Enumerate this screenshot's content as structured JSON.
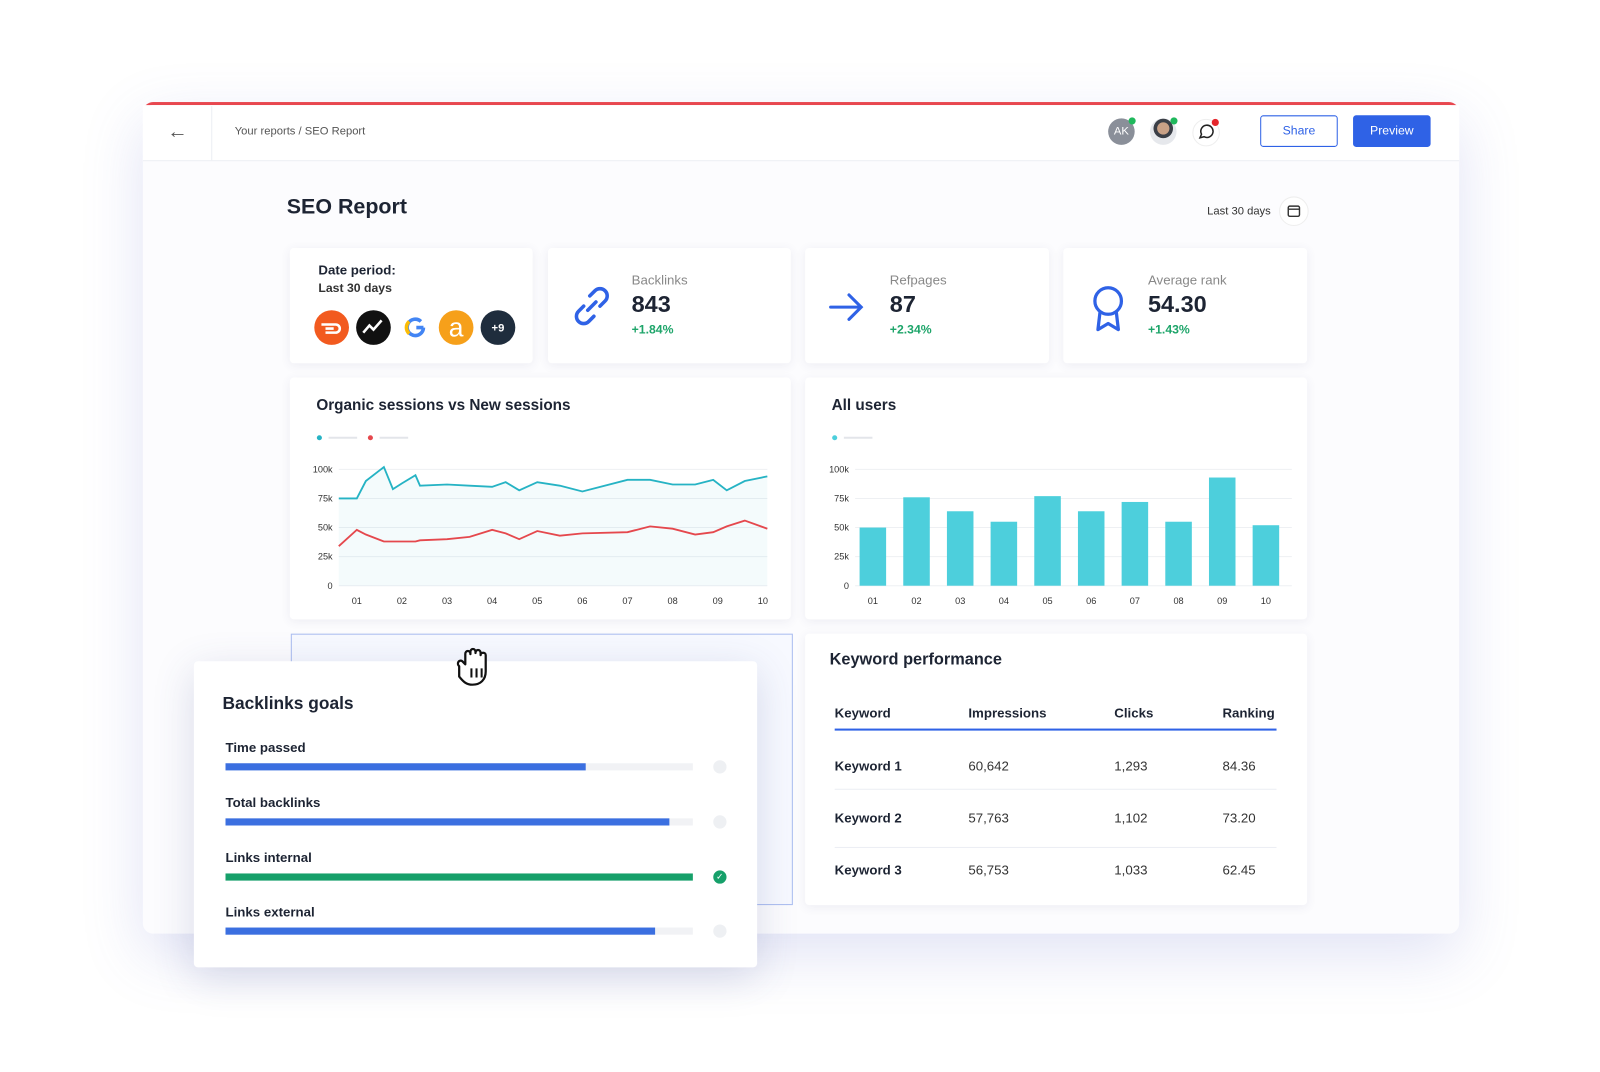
{
  "header": {
    "breadcrumb": "Your reports / SEO Report",
    "avatar_initials": "AK",
    "share_button": "Share",
    "preview_button": "Preview"
  },
  "report": {
    "title": "SEO Report",
    "date_range": "Last 30 days"
  },
  "date_card": {
    "label": "Date period:",
    "value": "Last 30 days",
    "more_sources": "+9"
  },
  "kpis": [
    {
      "label": "Backlinks",
      "value": "843",
      "change": "+1.84%"
    },
    {
      "label": "Refpages",
      "value": "87",
      "change": "+2.34%"
    },
    {
      "label": "Average rank",
      "value": "54.30",
      "change": "+1.43%"
    }
  ],
  "chart_data": [
    {
      "type": "line",
      "title": "Organic sessions vs New sessions",
      "x": [
        0.6,
        1.0,
        1.2,
        1.6,
        1.8,
        2.0,
        2.3,
        2.4,
        3.0,
        3.5,
        4.0,
        4.3,
        4.6,
        5.0,
        5.5,
        6.0,
        7.0,
        7.5,
        8.0,
        8.5,
        8.9,
        9.2,
        9.6,
        10.1
      ],
      "xlim": [
        0.6,
        10.1
      ],
      "xticks": [
        {
          "value": 1,
          "label": "01"
        },
        {
          "value": 2,
          "label": "02"
        },
        {
          "value": 3,
          "label": "03"
        },
        {
          "value": 4,
          "label": "04"
        },
        {
          "value": 5,
          "label": "05"
        },
        {
          "value": 6,
          "label": "06"
        },
        {
          "value": 7,
          "label": "07"
        },
        {
          "value": 8,
          "label": "08"
        },
        {
          "value": 9,
          "label": "09"
        },
        {
          "value": 10,
          "label": "10"
        }
      ],
      "ylim": [
        0,
        100
      ],
      "yticks": [
        0,
        {
          "value": 25,
          "label": "25k"
        },
        {
          "value": 50,
          "label": "50k"
        },
        {
          "value": 75,
          "label": "75k"
        },
        {
          "value": 100,
          "label": "100k"
        }
      ],
      "grid": true,
      "series": [
        {
          "color": "#26b3c4",
          "values": [
            75,
            75,
            90,
            102,
            83,
            88,
            95,
            86,
            87,
            86,
            85,
            89,
            82,
            89,
            86,
            81,
            91,
            91,
            87,
            87,
            91,
            82,
            90,
            94
          ]
        },
        {
          "color": "#e5484d",
          "values": [
            34,
            48,
            44,
            38,
            38,
            38,
            38,
            39,
            40,
            42,
            48,
            45,
            40,
            47,
            43,
            45,
            46,
            51,
            49,
            44,
            46,
            51,
            56,
            49
          ]
        }
      ]
    },
    {
      "type": "bar",
      "title": "All users",
      "categories": [
        "01",
        "02",
        "03",
        "04",
        "05",
        "06",
        "07",
        "08",
        "09",
        "10"
      ],
      "values": [
        50,
        76,
        64,
        55,
        77,
        64,
        72,
        55,
        93,
        52
      ],
      "color": "#4dcfdc",
      "ylim": [
        0,
        100
      ],
      "yticks": [
        0,
        {
          "value": 25,
          "label": "25k"
        },
        {
          "value": 50,
          "label": "50k"
        },
        {
          "value": 75,
          "label": "75k"
        },
        {
          "value": 100,
          "label": "100k"
        }
      ],
      "grid": true
    }
  ],
  "keyword_table": {
    "title": "Keyword performance",
    "columns": [
      "Keyword",
      "Impressions",
      "Clicks",
      "Ranking"
    ],
    "rows": [
      [
        "Keyword 1",
        "60,642",
        "1,293",
        "84.36"
      ],
      [
        "Keyword 2",
        "57,763",
        "1,102",
        "73.20"
      ],
      [
        "Keyword 3",
        "56,753",
        "1,033",
        "62.45"
      ]
    ]
  },
  "backlinks_goals": {
    "title": "Backlinks goals",
    "items": [
      {
        "label": "Time passed",
        "progress": 77,
        "color": "#3b6fe0"
      },
      {
        "label": "Total backlinks",
        "progress": 95,
        "color": "#3b6fe0"
      },
      {
        "label": "Links internal",
        "progress": 100,
        "color": "#16a06a"
      },
      {
        "label": "Links external",
        "progress": 92,
        "color": "#3b6fe0"
      }
    ]
  }
}
